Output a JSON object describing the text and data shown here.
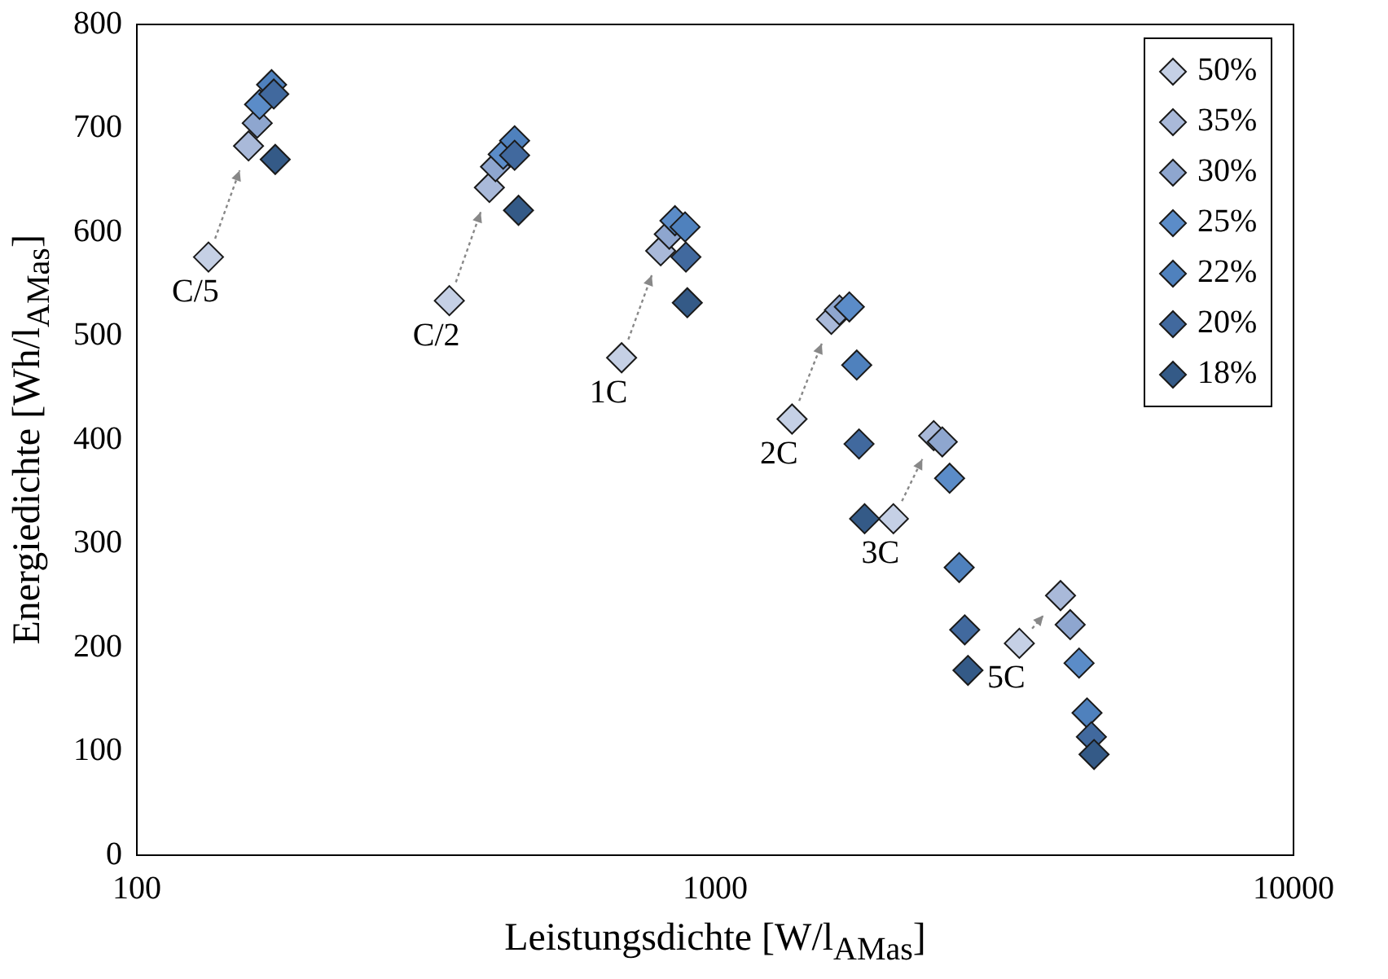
{
  "chart_data": {
    "type": "scatter",
    "xlabel": "Leistungsdichte [W/l$_{AMas}$]",
    "ylabel": "Energiedichte [Wh/l$_{AMas}$]",
    "log": "x",
    "xlim": [
      100,
      10000
    ],
    "xticks": [
      100,
      1000,
      10000
    ],
    "ylim": [
      0,
      800
    ],
    "yticks": [
      0,
      100,
      200,
      300,
      400,
      500,
      600,
      700,
      800
    ],
    "grid": false,
    "legend": "top right",
    "marker": "diamond",
    "series": [
      {
        "name": "50%",
        "color": "#c5d0e5",
        "x": [
          133,
          347,
          689,
          1358,
          2033,
          3357
        ],
        "values": [
          576,
          534,
          479,
          420,
          324,
          204
        ]
      },
      {
        "name": "35%",
        "color": "#a9b9d9",
        "x": [
          156,
          407,
          805,
          1588,
          2387,
          3955
        ],
        "values": [
          683,
          643,
          582,
          516,
          404,
          250
        ]
      },
      {
        "name": "30%",
        "color": "#8ea6cf",
        "x": [
          161.5,
          417,
          833,
          1640,
          2470,
          4110
        ],
        "values": [
          705,
          663,
          598,
          525,
          398,
          222
        ]
      },
      {
        "name": "25%",
        "color": "#5b8cc8",
        "x": [
          163,
          430,
          852,
          1706,
          2543,
          4258
        ],
        "values": [
          723,
          675,
          611,
          528,
          363,
          185
        ]
      },
      {
        "name": "22%",
        "color": "#4f81bd",
        "x": [
          171,
          450,
          887,
          1757,
          2642,
          4395
        ],
        "values": [
          742,
          688,
          605,
          472,
          277,
          137
        ]
      },
      {
        "name": "20%",
        "color": "#41699e",
        "x": [
          172.5,
          450,
          890,
          1773,
          2701,
          4472
        ],
        "values": [
          733,
          674,
          576,
          396,
          217,
          114
        ]
      },
      {
        "name": "18%",
        "color": "#345a87",
        "x": [
          173.5,
          457,
          895,
          1813,
          2736,
          4520
        ],
        "values": [
          670,
          621,
          532,
          324,
          178,
          97
        ]
      }
    ],
    "annotations": [
      {
        "text": "C/5",
        "x": 133,
        "y": 576
      },
      {
        "text": "C/2",
        "x": 347,
        "y": 534
      },
      {
        "text": "1C",
        "x": 689,
        "y": 479
      },
      {
        "text": "2C",
        "x": 1358,
        "y": 420
      },
      {
        "text": "3C",
        "x": 2033,
        "y": 324
      },
      {
        "text": "5C",
        "x": 3357,
        "y": 204
      }
    ]
  }
}
